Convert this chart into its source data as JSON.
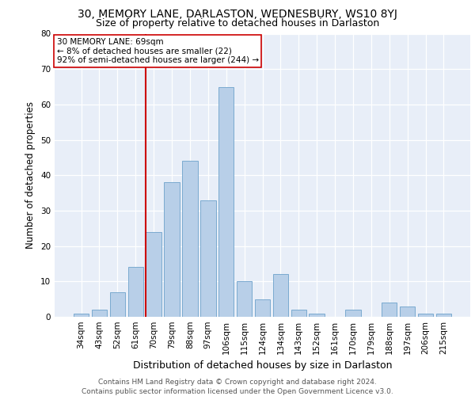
{
  "title1": "30, MEMORY LANE, DARLASTON, WEDNESBURY, WS10 8YJ",
  "title2": "Size of property relative to detached houses in Darlaston",
  "xlabel": "Distribution of detached houses by size in Darlaston",
  "ylabel": "Number of detached properties",
  "categories": [
    "34sqm",
    "43sqm",
    "52sqm",
    "61sqm",
    "70sqm",
    "79sqm",
    "88sqm",
    "97sqm",
    "106sqm",
    "115sqm",
    "124sqm",
    "134sqm",
    "143sqm",
    "152sqm",
    "161sqm",
    "170sqm",
    "179sqm",
    "188sqm",
    "197sqm",
    "206sqm",
    "215sqm"
  ],
  "values": [
    1,
    2,
    7,
    14,
    24,
    38,
    44,
    33,
    65,
    10,
    5,
    12,
    2,
    1,
    0,
    2,
    0,
    4,
    3,
    1,
    1
  ],
  "bar_color": "#b8cfe8",
  "bar_edge_color": "#7aaad0",
  "highlight_index": 4,
  "highlight_line_color": "#cc0000",
  "annotation_text": "30 MEMORY LANE: 69sqm\n← 8% of detached houses are smaller (22)\n92% of semi-detached houses are larger (244) →",
  "annotation_box_color": "#ffffff",
  "annotation_box_edge": "#cc0000",
  "ylim": [
    0,
    80
  ],
  "yticks": [
    0,
    10,
    20,
    30,
    40,
    50,
    60,
    70,
    80
  ],
  "background_color": "#e8eef8",
  "footer_text": "Contains HM Land Registry data © Crown copyright and database right 2024.\nContains public sector information licensed under the Open Government Licence v3.0.",
  "title_fontsize": 10,
  "subtitle_fontsize": 9,
  "xlabel_fontsize": 9,
  "ylabel_fontsize": 8.5,
  "tick_fontsize": 7.5,
  "footer_fontsize": 6.5,
  "annotation_fontsize": 7.5
}
